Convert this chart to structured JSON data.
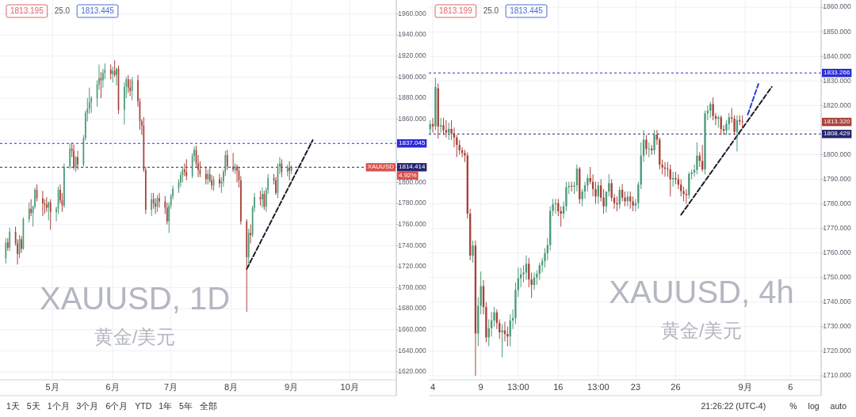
{
  "chart_data": [
    {
      "type": "candlestick",
      "title": "XAUUSD, 1D",
      "subtitle": "黄金/美元",
      "x": [
        "--04-07",
        "--04-08",
        "--04-09",
        "--04-12",
        "--04-13",
        "--04-14",
        "--04-15",
        "--04-16",
        "--04-19",
        "--04-20",
        "--04-21",
        "--04-22",
        "--04-23",
        "--04-26",
        "--04-27",
        "--04-28",
        "--04-29",
        "--04-30",
        "--05-03",
        "--05-04",
        "--05-05",
        "--05-06",
        "--05-07",
        "--05-10",
        "--05-11",
        "--05-12",
        "--05-13",
        "--05-14",
        "--05-17",
        "--05-18",
        "--05-19",
        "--05-20",
        "--05-21",
        "--05-24",
        "--05-25",
        "--05-26",
        "--05-27",
        "--05-28",
        "--05-31",
        "--06-01",
        "--06-02",
        "--06-03",
        "--06-04",
        "--06-07",
        "--06-08",
        "--06-09",
        "--06-10",
        "--06-11",
        "--06-14",
        "--06-15",
        "--06-16",
        "--06-17",
        "--06-18",
        "--06-21",
        "--06-22",
        "--06-23",
        "--06-24",
        "--06-25",
        "--06-28",
        "--06-29",
        "--06-30",
        "--07-01",
        "--07-02",
        "--07-05",
        "--07-06",
        "--07-07",
        "--07-08",
        "--07-09",
        "--07-12",
        "--07-13",
        "--07-14",
        "--07-15",
        "--07-16",
        "--07-19",
        "--07-20",
        "--07-21",
        "--07-22",
        "--07-23",
        "--07-26",
        "--07-27",
        "--07-28",
        "--07-29",
        "--07-30",
        "--08-02",
        "--08-03",
        "--08-04",
        "--08-05",
        "--08-06",
        "--08-09",
        "--08-10",
        "--08-11",
        "--08-12",
        "--08-13",
        "--08-16",
        "--08-17",
        "--08-18",
        "--08-19",
        "--08-20",
        "--08-23",
        "--08-24",
        "--08-25",
        "--08-26",
        "--08-27",
        "--08-30",
        "--08-31",
        "--09-01"
      ],
      "ohlc": [
        [
          1728,
          1747,
          1723,
          1743
        ],
        [
          1743,
          1747,
          1735,
          1738
        ],
        [
          1738,
          1757,
          1735,
          1753
        ],
        [
          1753,
          1758,
          1740,
          1742
        ],
        [
          1742,
          1746,
          1722,
          1732
        ],
        [
          1732,
          1750,
          1728,
          1746
        ],
        [
          1746,
          1749,
          1733,
          1737
        ],
        [
          1737,
          1767,
          1736,
          1765
        ],
        [
          1765,
          1781,
          1762,
          1775
        ],
        [
          1775,
          1784,
          1768,
          1771
        ],
        [
          1771,
          1778,
          1758,
          1777
        ],
        [
          1777,
          1795,
          1775,
          1793
        ],
        [
          1793,
          1798,
          1782,
          1785
        ],
        [
          1785,
          1792,
          1768,
          1780
        ],
        [
          1780,
          1784,
          1770,
          1779
        ],
        [
          1779,
          1786,
          1772,
          1776
        ],
        [
          1776,
          1782,
          1764,
          1781
        ],
        [
          1781,
          1784,
          1755,
          1772
        ],
        [
          1772,
          1777,
          1763,
          1775
        ],
        [
          1775,
          1796,
          1770,
          1793
        ],
        [
          1793,
          1798,
          1780,
          1783
        ],
        [
          1783,
          1790,
          1772,
          1778
        ],
        [
          1778,
          1818,
          1776,
          1815
        ],
        [
          1815,
          1837,
          1813,
          1832
        ],
        [
          1832,
          1838,
          1824,
          1830
        ],
        [
          1830,
          1836,
          1812,
          1814
        ],
        [
          1814,
          1825,
          1810,
          1824
        ],
        [
          1824,
          1830,
          1812,
          1817
        ],
        [
          1817,
          1845,
          1815,
          1842
        ],
        [
          1842,
          1868,
          1840,
          1866
        ],
        [
          1866,
          1880,
          1858,
          1870
        ],
        [
          1870,
          1890,
          1865,
          1876
        ],
        [
          1876,
          1882,
          1866,
          1880
        ],
        [
          1880,
          1897,
          1872,
          1893
        ],
        [
          1893,
          1912,
          1888,
          1899
        ],
        [
          1899,
          1905,
          1880,
          1897
        ],
        [
          1897,
          1908,
          1890,
          1904
        ],
        [
          1904,
          1913,
          1898,
          1907
        ],
        [
          1907,
          1912,
          1898,
          1903
        ],
        [
          1903,
          1910,
          1895,
          1906
        ],
        [
          1906,
          1916,
          1900,
          1902
        ],
        [
          1902,
          1909,
          1892,
          1908
        ],
        [
          1908,
          1911,
          1865,
          1869
        ],
        [
          1869,
          1895,
          1855,
          1891
        ],
        [
          1891,
          1900,
          1880,
          1898
        ],
        [
          1898,
          1902,
          1885,
          1890
        ],
        [
          1890,
          1898,
          1882,
          1887
        ],
        [
          1887,
          1900,
          1878,
          1897
        ],
        [
          1897,
          1902,
          1872,
          1877
        ],
        [
          1877,
          1880,
          1850,
          1858
        ],
        [
          1858,
          1860,
          1845,
          1854
        ],
        [
          1854,
          1862,
          1810,
          1812
        ],
        [
          1812,
          1815,
          1770,
          1774
        ],
        [
          1774,
          1790,
          1768,
          1784
        ],
        [
          1784,
          1790,
          1775,
          1780
        ],
        [
          1780,
          1785,
          1770,
          1777
        ],
        [
          1777,
          1788,
          1772,
          1785
        ],
        [
          1785,
          1790,
          1776,
          1782
        ],
        [
          1782,
          1787,
          1770,
          1776
        ],
        [
          1776,
          1781,
          1760,
          1763
        ],
        [
          1763,
          1781,
          1752,
          1778
        ],
        [
          1778,
          1789,
          1775,
          1787
        ],
        [
          1787,
          1797,
          1784,
          1794
        ],
        [
          1794,
          1803,
          1790,
          1800
        ],
        [
          1800,
          1810,
          1796,
          1807
        ],
        [
          1807,
          1815,
          1800,
          1812
        ],
        [
          1812,
          1818,
          1806,
          1810
        ],
        [
          1810,
          1822,
          1802,
          1806
        ],
        [
          1806,
          1828,
          1804,
          1825
        ],
        [
          1825,
          1834,
          1820,
          1831
        ],
        [
          1831,
          1835,
          1815,
          1818
        ],
        [
          1818,
          1826,
          1805,
          1812
        ],
        [
          1812,
          1820,
          1805,
          1808
        ],
        [
          1808,
          1815,
          1798,
          1803
        ],
        [
          1803,
          1812,
          1798,
          1808
        ],
        [
          1808,
          1815,
          1800,
          1802
        ],
        [
          1802,
          1807,
          1793,
          1797
        ],
        [
          1797,
          1806,
          1792,
          1803
        ],
        [
          1803,
          1808,
          1795,
          1799
        ],
        [
          1799,
          1805,
          1790,
          1801
        ],
        [
          1801,
          1812,
          1796,
          1810
        ],
        [
          1810,
          1830,
          1806,
          1826
        ],
        [
          1826,
          1831,
          1812,
          1815
        ],
        [
          1815,
          1828,
          1810,
          1812
        ],
        [
          1812,
          1818,
          1808,
          1815
        ],
        [
          1815,
          1817,
          1800,
          1811
        ],
        [
          1811,
          1814,
          1795,
          1802
        ],
        [
          1802,
          1806,
          1760,
          1763
        ],
        [
          1763,
          1765,
          1677,
          1729
        ],
        [
          1729,
          1756,
          1722,
          1752
        ],
        [
          1752,
          1760,
          1742,
          1750
        ],
        [
          1750,
          1778,
          1748,
          1776
        ],
        [
          1776,
          1790,
          1772,
          1786
        ],
        [
          1786,
          1792,
          1778,
          1784
        ],
        [
          1784,
          1795,
          1776,
          1789
        ],
        [
          1789,
          1792,
          1774,
          1777
        ],
        [
          1777,
          1795,
          1772,
          1793
        ],
        [
          1793,
          1808,
          1789,
          1804
        ],
        [
          1804,
          1808,
          1798,
          1802
        ],
        [
          1802,
          1805,
          1788,
          1790
        ],
        [
          1790,
          1818,
          1785,
          1815
        ],
        [
          1815,
          1824,
          1808,
          1818
        ],
        [
          1818,
          1822,
          1805,
          1810
        ],
        [
          1810,
          1817,
          1806,
          1814
        ],
        [
          1814,
          1820,
          1802,
          1811
        ],
        [
          1811,
          1816,
          1808,
          1814.4
        ]
      ],
      "colors": [
        "#4c9a78",
        "#a8423a",
        "#4c9a78",
        "#a8423a",
        "#a8423a",
        "#4c9a78",
        "#a8423a",
        "#4c9a78",
        "#4c9a78",
        "#a8423a",
        "#4c9a78",
        "#4c9a78",
        "#a8423a",
        "#a8423a",
        "#a8423a",
        "#a8423a",
        "#4c9a78",
        "#a8423a",
        "#4c9a78",
        "#4c9a78",
        "#a8423a",
        "#a8423a",
        "#4c9a78",
        "#4c9a78",
        "#a8423a",
        "#a8423a",
        "#4c9a78",
        "#a8423a",
        "#4c9a78",
        "#4c9a78",
        "#4c9a78",
        "#4c9a78",
        "#4c9a78",
        "#4c9a78",
        "#4c9a78",
        "#a8423a",
        "#4c9a78",
        "#4c9a78",
        "#a8423a",
        "#4c9a78",
        "#a8423a",
        "#4c9a78",
        "#a8423a",
        "#4c9a78",
        "#4c9a78",
        "#a8423a",
        "#a8423a",
        "#4c9a78",
        "#a8423a",
        "#a8423a",
        "#a8423a",
        "#a8423a",
        "#a8423a",
        "#4c9a78",
        "#a8423a",
        "#a8423a",
        "#4c9a78",
        "#a8423a",
        "#a8423a",
        "#a8423a",
        "#4c9a78",
        "#4c9a78",
        "#4c9a78",
        "#4c9a78",
        "#4c9a78",
        "#4c9a78",
        "#a8423a",
        "#a8423a",
        "#4c9a78",
        "#4c9a78",
        "#a8423a",
        "#a8423a",
        "#a8423a",
        "#a8423a",
        "#4c9a78",
        "#a8423a",
        "#a8423a",
        "#4c9a78",
        "#a8423a",
        "#4c9a78",
        "#4c9a78",
        "#4c9a78",
        "#a8423a",
        "#a8423a",
        "#4c9a78",
        "#a8423a",
        "#a8423a",
        "#a8423a",
        "#a8423a",
        "#4c9a78",
        "#a8423a",
        "#4c9a78",
        "#4c9a78",
        "#a8423a",
        "#4c9a78",
        "#a8423a",
        "#4c9a78",
        "#4c9a78",
        "#a8423a",
        "#a8423a",
        "#4c9a78",
        "#4c9a78",
        "#a8423a",
        "#4c9a78",
        "#a8423a",
        "#4c9a78"
      ],
      "xlim": [
        "--04-04",
        "--10-25"
      ],
      "xticks": [
        {
          "value": "--05-01",
          "label": "5月"
        },
        {
          "value": "--06-01",
          "label": "6月"
        },
        {
          "value": "--07-01",
          "label": "7月"
        },
        {
          "value": "--08-01",
          "label": "8月"
        },
        {
          "value": "--09-01",
          "label": "9月"
        },
        {
          "value": "--10-01",
          "label": "10月"
        }
      ],
      "ylim": [
        1614,
        1971
      ],
      "yticks": [
        {
          "value": 1620,
          "label": "1620.000"
        },
        {
          "value": 1640,
          "label": "1640.000"
        },
        {
          "value": 1660,
          "label": "1660.000"
        },
        {
          "value": 1680,
          "label": "1680.000"
        },
        {
          "value": 1700,
          "label": "1700.000"
        },
        {
          "value": 1720,
          "label": "1720.000"
        },
        {
          "value": 1740,
          "label": "1740.000"
        },
        {
          "value": 1760,
          "label": "1760.000"
        },
        {
          "value": 1780,
          "label": "1780.000"
        },
        {
          "value": 1800,
          "label": "1800.000"
        },
        {
          "value": 1820,
          "label": null
        },
        {
          "value": 1840,
          "label": null
        },
        {
          "value": 1860,
          "label": "1860.000"
        },
        {
          "value": 1880,
          "label": "1880.000"
        },
        {
          "value": 1900,
          "label": "1900.000"
        },
        {
          "value": 1920,
          "label": "1920.000"
        },
        {
          "value": 1940,
          "label": "1940.000"
        },
        {
          "value": 1960,
          "label": "1960.000"
        }
      ],
      "grid": true,
      "ref_lines": [
        {
          "axis": "y",
          "value": 1837.045,
          "label": "1837.045",
          "color": "#2b2bd9",
          "line_style": "dashed"
        },
        {
          "axis": "y",
          "value": 1814.414,
          "label": "1814.414",
          "color": "#25256e",
          "line_style": "dashed"
        }
      ],
      "series": [
        {
          "type": "line",
          "x": [
            "--08-09",
            "--09-12"
          ],
          "values": [
            1717.7,
            1840.2
          ],
          "color": "#1c1c2a",
          "line_style": "dashed"
        }
      ],
      "annotations": [
        "1813.195",
        "25.0",
        "1813.445",
        "XAUUSD",
        "4.92%"
      ]
    },
    {
      "type": "candlestick",
      "title": "XAUUSD, 4h",
      "subtitle": "黄金/美元",
      "categories": [
        null,
        "4",
        null,
        null,
        null,
        null,
        null,
        null,
        null,
        null,
        null,
        null,
        null,
        null,
        null,
        null,
        null,
        null,
        null,
        "9",
        null,
        null,
        null,
        null,
        null,
        null,
        null,
        null,
        null,
        null,
        null,
        null,
        null,
        "13:00",
        null,
        null,
        null,
        null,
        null,
        null,
        null,
        null,
        null,
        null,
        null,
        null,
        null,
        null,
        "16",
        null,
        null,
        null,
        null,
        null,
        null,
        null,
        null,
        null,
        null,
        null,
        null,
        null,
        null,
        "13:00",
        null,
        null,
        null,
        null,
        null,
        null,
        null,
        null,
        null,
        null,
        null,
        null,
        null,
        "23",
        null,
        null,
        null,
        null,
        null,
        null,
        null,
        null,
        null,
        null,
        null,
        null,
        null,
        null,
        "26",
        null,
        null,
        null,
        null,
        null,
        null,
        null,
        null,
        null,
        null,
        null,
        null,
        null,
        null,
        null,
        null,
        null,
        null,
        null,
        null,
        null,
        null,
        null,
        null,
        null,
        "9月",
        null,
        null,
        null,
        null,
        null,
        null,
        null,
        null,
        null,
        null,
        null,
        null,
        null,
        null,
        null,
        null,
        "6",
        null,
        null,
        null,
        null,
        null,
        null,
        null,
        null,
        null,
        null,
        null
      ],
      "ohlc": [
        [
          1810.4,
          1814,
          1808,
          1812.5
        ],
        [
          1812.5,
          1815,
          1809,
          1811.5
        ],
        [
          1811.5,
          1831.3,
          1810,
          1827.6
        ],
        [
          1827,
          1829,
          1806.6,
          1811.5
        ],
        [
          1811.5,
          1815,
          1809,
          1812
        ],
        [
          1812,
          1815,
          1808,
          1810
        ],
        [
          1810,
          1814,
          1807,
          1809
        ],
        [
          1809,
          1813,
          1806,
          1810.5
        ],
        [
          1810.5,
          1814,
          1806,
          1808.7
        ],
        [
          1808.7,
          1811,
          1803,
          1807
        ],
        [
          1807,
          1808,
          1799,
          1804
        ],
        [
          1804,
          1806,
          1800,
          1801.8
        ],
        [
          1801.8,
          1803,
          1799,
          1800.7
        ],
        [
          1800.7,
          1802,
          1797,
          1799.7
        ],
        [
          1799.7,
          1801,
          1774,
          1776
        ],
        [
          1776,
          1778,
          1757,
          1758.9
        ],
        [
          1758.9,
          1765,
          1756,
          1763
        ],
        [
          1763,
          1765,
          1710,
          1727.2
        ],
        [
          1727.2,
          1742,
          1722,
          1738.5
        ],
        [
          1738.5,
          1752.4,
          1735,
          1746.5
        ],
        [
          1746.5,
          1749,
          1735,
          1738
        ],
        [
          1738,
          1740,
          1723.6,
          1725.6
        ],
        [
          1725.6,
          1733,
          1722,
          1729.3
        ],
        [
          1729.3,
          1736,
          1726,
          1732.5
        ],
        [
          1732.5,
          1738,
          1730,
          1735.8
        ],
        [
          1735.8,
          1737,
          1729,
          1731.5
        ],
        [
          1731.5,
          1733,
          1725,
          1727.7
        ],
        [
          1727.7,
          1731,
          1717.5,
          1728.5
        ],
        [
          1728.5,
          1732,
          1724,
          1727
        ],
        [
          1727,
          1730,
          1722,
          1726
        ],
        [
          1726,
          1735,
          1722,
          1732.5
        ],
        [
          1732.5,
          1737,
          1729,
          1733.5
        ],
        [
          1733.5,
          1748,
          1731,
          1744.9
        ],
        [
          1744.9,
          1754,
          1742,
          1749.7
        ],
        [
          1749.7,
          1754,
          1746,
          1751.3
        ],
        [
          1751.3,
          1755,
          1748,
          1752
        ],
        [
          1752,
          1759,
          1749,
          1755.6
        ],
        [
          1755.6,
          1758,
          1746,
          1749.2
        ],
        [
          1749.2,
          1752,
          1741.7,
          1747
        ],
        [
          1747,
          1752,
          1745,
          1750
        ],
        [
          1750,
          1753,
          1747,
          1751.5
        ],
        [
          1751.5,
          1756,
          1749,
          1755
        ],
        [
          1755,
          1758,
          1752,
          1756.7
        ],
        [
          1756.7,
          1762,
          1754,
          1759.9
        ],
        [
          1759.9,
          1766,
          1757,
          1763.2
        ],
        [
          1763.2,
          1779,
          1761,
          1777.1
        ],
        [
          1777.1,
          1782,
          1775,
          1779.8
        ],
        [
          1779.8,
          1782,
          1776,
          1780.3
        ],
        [
          1780.3,
          1782,
          1775,
          1777
        ],
        [
          1777,
          1779,
          1770.7,
          1776
        ],
        [
          1776,
          1781,
          1774,
          1779
        ],
        [
          1779,
          1789,
          1777,
          1786.8
        ],
        [
          1786.8,
          1789,
          1784,
          1787.3
        ],
        [
          1787.3,
          1789,
          1785,
          1787
        ],
        [
          1787,
          1789,
          1784,
          1787.5
        ],
        [
          1787.5,
          1796,
          1785,
          1794.3
        ],
        [
          1794.3,
          1795,
          1780,
          1781.9
        ],
        [
          1781.9,
          1786,
          1779,
          1785
        ],
        [
          1785,
          1789,
          1782,
          1787.5
        ],
        [
          1787.5,
          1792,
          1785,
          1790.5
        ],
        [
          1790.5,
          1795,
          1788,
          1789
        ],
        [
          1789,
          1792,
          1783,
          1786
        ],
        [
          1786,
          1789,
          1780,
          1783
        ],
        [
          1783,
          1789,
          1780,
          1787.5
        ],
        [
          1787.5,
          1790,
          1781,
          1782.5
        ],
        [
          1782.5,
          1786,
          1776,
          1779
        ],
        [
          1779,
          1785,
          1776.5,
          1785
        ],
        [
          1785,
          1792,
          1783,
          1788.4
        ],
        [
          1788.4,
          1790,
          1781,
          1782.5
        ],
        [
          1782.5,
          1784,
          1778,
          1780.3
        ],
        [
          1780.3,
          1783,
          1777,
          1779.8
        ],
        [
          1779.8,
          1787,
          1778,
          1785.7
        ],
        [
          1785.7,
          1788,
          1781,
          1782.5
        ],
        [
          1782.5,
          1785,
          1779,
          1781
        ],
        [
          1781,
          1785,
          1779,
          1783
        ],
        [
          1783,
          1785,
          1778,
          1781
        ],
        [
          1781,
          1783,
          1777,
          1779.3
        ],
        [
          1779.3,
          1782,
          1777,
          1780.3
        ],
        [
          1780.3,
          1789,
          1778,
          1787.8
        ],
        [
          1787.8,
          1805,
          1786,
          1799.6
        ],
        [
          1799.6,
          1810,
          1797,
          1806.1
        ],
        [
          1806.1,
          1808,
          1800,
          1802.3
        ],
        [
          1802.3,
          1805,
          1799,
          1802.5
        ],
        [
          1802.5,
          1804,
          1800,
          1801.8
        ],
        [
          1801.8,
          1810,
          1800,
          1808.2
        ],
        [
          1808.2,
          1810,
          1804,
          1806.1
        ],
        [
          1806.1,
          1807,
          1794,
          1795.9
        ],
        [
          1795.9,
          1798,
          1792,
          1794.8
        ],
        [
          1794.8,
          1797,
          1791,
          1794.3
        ],
        [
          1794.3,
          1797,
          1791,
          1794
        ],
        [
          1794,
          1796,
          1783,
          1790
        ],
        [
          1790,
          1793,
          1787,
          1790.5
        ],
        [
          1790.5,
          1793,
          1788,
          1790
        ],
        [
          1790,
          1792,
          1786,
          1787.8
        ],
        [
          1787.8,
          1790,
          1783,
          1785.2
        ],
        [
          1785.2,
          1787,
          1781,
          1784
        ],
        [
          1784,
          1786,
          1780,
          1783.5
        ],
        [
          1783.5,
          1793,
          1782,
          1792.1
        ],
        [
          1792.1,
          1794,
          1790,
          1792.7
        ],
        [
          1792.7,
          1796,
          1791,
          1793.8
        ],
        [
          1793.8,
          1805,
          1792,
          1799.6
        ],
        [
          1799.6,
          1801,
          1795,
          1797.5
        ],
        [
          1797.5,
          1804,
          1793,
          1794
        ],
        [
          1794,
          1818,
          1792,
          1816.8
        ],
        [
          1816.8,
          1820,
          1814,
          1817.9
        ],
        [
          1817.9,
          1821.6,
          1815,
          1820.6
        ],
        [
          1820.6,
          1823.3,
          1814,
          1815.7
        ],
        [
          1815.7,
          1817,
          1812,
          1814.6
        ],
        [
          1814.6,
          1816,
          1811,
          1815.2
        ],
        [
          1815.2,
          1816,
          1808,
          1810.4
        ],
        [
          1810.4,
          1812,
          1808,
          1809.8
        ],
        [
          1809.8,
          1814,
          1808,
          1812.5
        ],
        [
          1812.5,
          1817,
          1810,
          1815.2
        ],
        [
          1815.2,
          1819,
          1813,
          1814.7
        ],
        [
          1814.7,
          1816,
          1808,
          1809.3
        ],
        [
          1809.3,
          1816,
          1801.3,
          1814.1
        ],
        [
          1814.1,
          1816,
          1812,
          1813.6
        ],
        [
          1813.6,
          1816,
          1811,
          1813.32
        ],
        null,
        null,
        null,
        null,
        null,
        null,
        null,
        null,
        null,
        null,
        null,
        null,
        null,
        null,
        null,
        null,
        null,
        null,
        null,
        null,
        null,
        null,
        null,
        null,
        null,
        null,
        null,
        null,
        null
      ],
      "colors": [
        "#4c9a78",
        "#a8423a",
        "#4c9a78",
        "#a8423a",
        "#4c9a78",
        "#a8423a",
        "#a8423a",
        "#4c9a78",
        "#a8423a",
        "#a8423a",
        "#a8423a",
        "#a8423a",
        "#a8423a",
        "#a8423a",
        "#a8423a",
        "#a8423a",
        "#4c9a78",
        "#a8423a",
        "#4c9a78",
        "#4c9a78",
        "#a8423a",
        "#a8423a",
        "#4c9a78",
        "#4c9a78",
        "#4c9a78",
        "#a8423a",
        "#a8423a",
        "#4c9a78",
        "#a8423a",
        "#a8423a",
        "#4c9a78",
        "#4c9a78",
        "#4c9a78",
        "#4c9a78",
        "#4c9a78",
        "#4c9a78",
        "#4c9a78",
        "#a8423a",
        "#a8423a",
        "#4c9a78",
        "#4c9a78",
        "#4c9a78",
        "#4c9a78",
        "#4c9a78",
        "#4c9a78",
        "#4c9a78",
        "#4c9a78",
        "#4c9a78",
        "#a8423a",
        "#a8423a",
        "#4c9a78",
        "#4c9a78",
        "#4c9a78",
        "#a8423a",
        "#4c9a78",
        "#4c9a78",
        "#a8423a",
        "#4c9a78",
        "#4c9a78",
        "#4c9a78",
        "#a8423a",
        "#a8423a",
        "#a8423a",
        "#4c9a78",
        "#a8423a",
        "#a8423a",
        "#4c9a78",
        "#4c9a78",
        "#a8423a",
        "#a8423a",
        "#a8423a",
        "#4c9a78",
        "#a8423a",
        "#a8423a",
        "#4c9a78",
        "#a8423a",
        "#a8423a",
        "#4c9a78",
        "#4c9a78",
        "#4c9a78",
        "#4c9a78",
        "#a8423a",
        "#4c9a78",
        "#a8423a",
        "#4c9a78",
        "#a8423a",
        "#a8423a",
        "#a8423a",
        "#a8423a",
        "#a8423a",
        "#a8423a",
        "#4c9a78",
        "#a8423a",
        "#a8423a",
        "#a8423a",
        "#a8423a",
        "#a8423a",
        "#4c9a78",
        "#4c9a78",
        "#4c9a78",
        "#4c9a78",
        "#a8423a",
        "#a8423a",
        "#4c9a78",
        "#4c9a78",
        "#4c9a78",
        "#a8423a",
        "#a8423a",
        "#4c9a78",
        "#a8423a",
        "#a8423a",
        "#4c9a78",
        "#4c9a78",
        "#a8423a",
        "#a8423a",
        "#4c9a78",
        "#a8423a",
        "#a8423a",
        null,
        null,
        null,
        null,
        null,
        null,
        null,
        null,
        null,
        null,
        null,
        null,
        null,
        null,
        null,
        null,
        null,
        null,
        null,
        null,
        null,
        null,
        null,
        null,
        null,
        null,
        null,
        null,
        null
      ],
      "ylim": [
        1709,
        1862
      ],
      "yticks": [
        {
          "value": 1710,
          "label": "1710.000"
        },
        {
          "value": 1720,
          "label": "1720.000"
        },
        {
          "value": 1730,
          "label": "1730.000"
        },
        {
          "value": 1740,
          "label": "1740.000"
        },
        {
          "value": 1750,
          "label": "1750.000"
        },
        {
          "value": 1760,
          "label": "1760.000"
        },
        {
          "value": 1770,
          "label": "1770.000"
        },
        {
          "value": 1780,
          "label": "1780.000"
        },
        {
          "value": 1790,
          "label": "1790.000"
        },
        {
          "value": 1800,
          "label": "1800.000"
        },
        {
          "value": 1810,
          "label": null
        },
        {
          "value": 1820,
          "label": "1820.000"
        },
        {
          "value": 1830,
          "label": "1830.000"
        },
        {
          "value": 1840,
          "label": "1840.000"
        },
        {
          "value": 1850,
          "label": "1850.000"
        },
        {
          "value": 1860,
          "label": "1860.000"
        }
      ],
      "grid": true,
      "ref_lines": [
        {
          "axis": "y",
          "value": 1833.266,
          "label": "1833.266",
          "color": "#2b2bd9",
          "line_style": "dashed"
        },
        {
          "axis": "y",
          "value": 1808.429,
          "label": "1808.429",
          "color": "#25256e",
          "line_style": "dashed"
        }
      ],
      "series": [
        {
          "type": "line",
          "values": [
            null,
            null,
            null,
            null,
            null,
            null,
            null,
            null,
            null,
            null,
            null,
            null,
            null,
            null,
            null,
            null,
            null,
            null,
            null,
            null,
            null,
            null,
            null,
            null,
            null,
            null,
            null,
            null,
            null,
            null,
            null,
            null,
            null,
            null,
            null,
            null,
            null,
            null,
            null,
            null,
            null,
            null,
            null,
            null,
            null,
            null,
            null,
            null,
            null,
            null,
            null,
            null,
            null,
            null,
            null,
            null,
            null,
            null,
            null,
            null,
            null,
            null,
            null,
            null,
            null,
            null,
            null,
            null,
            null,
            null,
            null,
            null,
            null,
            null,
            null,
            null,
            null,
            null,
            null,
            null,
            null,
            null,
            null,
            null,
            null,
            null,
            null,
            null,
            null,
            null,
            null,
            null,
            null,
            null,
            1775.5,
            null,
            null,
            null,
            null,
            null,
            null,
            null,
            null,
            null,
            null,
            null,
            null,
            null,
            null,
            null,
            null,
            null,
            null,
            null,
            null,
            null,
            null,
            null,
            null,
            null,
            null,
            null,
            null,
            null,
            null,
            null,
            null,
            null,
            1827.6,
            null,
            null,
            null,
            null,
            null,
            null,
            null,
            null,
            null,
            null,
            null,
            null,
            null,
            null,
            null,
            null,
            null,
            null
          ],
          "color": "#1c1c2a",
          "line_style": "dashed"
        },
        {
          "type": "line",
          "values": [
            null,
            null,
            null,
            null,
            null,
            null,
            null,
            null,
            null,
            null,
            null,
            null,
            null,
            null,
            null,
            null,
            null,
            null,
            null,
            null,
            null,
            null,
            null,
            null,
            null,
            null,
            null,
            null,
            null,
            null,
            null,
            null,
            null,
            null,
            null,
            null,
            null,
            null,
            null,
            null,
            null,
            null,
            null,
            null,
            null,
            null,
            null,
            null,
            null,
            null,
            null,
            null,
            null,
            null,
            null,
            null,
            null,
            null,
            null,
            null,
            null,
            null,
            null,
            null,
            null,
            null,
            null,
            null,
            null,
            null,
            null,
            null,
            null,
            null,
            null,
            null,
            null,
            null,
            null,
            null,
            null,
            null,
            null,
            null,
            null,
            null,
            null,
            null,
            null,
            null,
            null,
            null,
            null,
            null,
            null,
            null,
            null,
            null,
            null,
            null,
            null,
            null,
            null,
            null,
            null,
            null,
            null,
            null,
            null,
            null,
            null,
            null,
            null,
            null,
            null,
            null,
            null,
            null,
            null,
            1816.3,
            null,
            null,
            null,
            1828.8,
            null,
            null,
            null,
            null,
            null,
            null,
            null,
            null,
            null,
            null,
            null,
            null,
            null,
            null,
            null,
            null,
            null,
            null,
            null,
            null,
            null,
            null,
            null
          ],
          "color": "#2b3fd6",
          "line_style": "dashed"
        }
      ],
      "annotations": [
        "1813.199",
        "25.0",
        "1813.445",
        "1813.320"
      ]
    },
    {
      "type": "other",
      "annotations": [
        "1天",
        "5天",
        "1个月",
        "3个月",
        "6个月",
        "YTD",
        "1年",
        "5年",
        "全部"
      ]
    },
    {
      "type": "other",
      "annotations": [
        "21:26:22 (UTC-4)",
        "%",
        "log",
        "auto"
      ]
    }
  ]
}
